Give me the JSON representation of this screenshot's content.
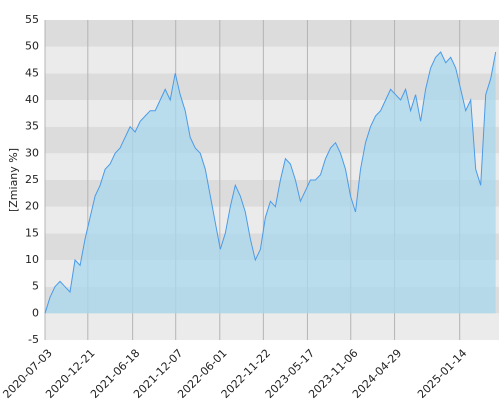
{
  "chart_data": {
    "type": "area",
    "y_label": "[Zmiany %]",
    "x": [
      "2020-07-03",
      "2020-07-23",
      "2020-08-12",
      "2020-09-01",
      "2020-09-21",
      "2020-10-11",
      "2020-10-31",
      "2020-11-20",
      "2020-12-10",
      "2020-12-30",
      "2021-01-19",
      "2021-02-08",
      "2021-02-28",
      "2021-03-20",
      "2021-04-09",
      "2021-04-29",
      "2021-05-19",
      "2021-06-08",
      "2021-06-28",
      "2021-07-18",
      "2021-08-07",
      "2021-08-27",
      "2021-09-16",
      "2021-10-06",
      "2021-10-26",
      "2021-11-15",
      "2021-12-05",
      "2021-12-25",
      "2022-01-14",
      "2022-02-03",
      "2022-02-23",
      "2022-03-15",
      "2022-04-04",
      "2022-04-24",
      "2022-05-14",
      "2022-06-03",
      "2022-06-23",
      "2022-07-13",
      "2022-08-02",
      "2022-08-22",
      "2022-09-11",
      "2022-10-01",
      "2022-10-21",
      "2022-11-10",
      "2022-11-30",
      "2022-12-20",
      "2023-01-09",
      "2023-01-29",
      "2023-02-18",
      "2023-03-10",
      "2023-03-30",
      "2023-04-19",
      "2023-05-09",
      "2023-05-29",
      "2023-06-18",
      "2023-07-08",
      "2023-07-28",
      "2023-08-17",
      "2023-09-06",
      "2023-09-26",
      "2023-10-16",
      "2023-11-05",
      "2023-11-25",
      "2023-12-15",
      "2024-01-04",
      "2024-01-24",
      "2024-02-13",
      "2024-03-04",
      "2024-03-24",
      "2024-04-13",
      "2024-05-03",
      "2024-05-23",
      "2024-06-12",
      "2024-07-02",
      "2024-07-22",
      "2024-08-11",
      "2024-08-31",
      "2024-09-20",
      "2024-10-10",
      "2024-10-30",
      "2024-11-19",
      "2024-12-09",
      "2024-12-29",
      "2025-01-18",
      "2025-02-07",
      "2025-02-27",
      "2025-03-19",
      "2025-04-08",
      "2025-04-28",
      "2025-05-18",
      "2025-06-07"
    ],
    "series": [
      {
        "color": "#4a9be8",
        "fill": "#a9d8ee",
        "values": [
          0,
          3,
          5,
          6,
          5,
          4,
          10,
          9,
          14,
          18,
          22,
          24,
          27,
          28,
          30,
          31,
          33,
          35,
          34,
          36,
          37,
          38,
          38,
          40,
          42,
          40,
          45,
          41,
          38,
          33,
          31,
          30,
          27,
          22,
          17,
          12,
          15,
          20,
          24,
          22,
          19,
          14,
          10,
          12,
          18,
          21,
          20,
          25,
          29,
          28,
          25,
          21,
          23,
          25,
          25,
          26,
          29,
          31,
          32,
          30,
          27,
          22,
          19,
          27,
          32,
          35,
          37,
          38,
          40,
          42,
          41,
          40,
          42,
          38,
          41,
          36,
          42,
          46,
          48,
          49,
          47,
          48,
          46,
          42,
          38,
          40,
          27,
          24,
          41,
          44,
          49
        ]
      }
    ],
    "xlim": [
      "2020-07-03",
      "2025-06-20"
    ],
    "xticks": [
      "2020-07-03",
      "2020-12-21",
      "2021-06-18",
      "2021-12-07",
      "2022-06-01",
      "2022-11-22",
      "2023-05-17",
      "2023-11-06",
      "2024-04-29",
      "2025-01-14"
    ],
    "ylim": [
      -5,
      55
    ],
    "yticks": [
      -5,
      0,
      5,
      10,
      15,
      20,
      25,
      30,
      35,
      40,
      45,
      50,
      55
    ],
    "band_colors": [
      "#ebebeb",
      "#dcdcdc"
    ],
    "grid": true
  }
}
